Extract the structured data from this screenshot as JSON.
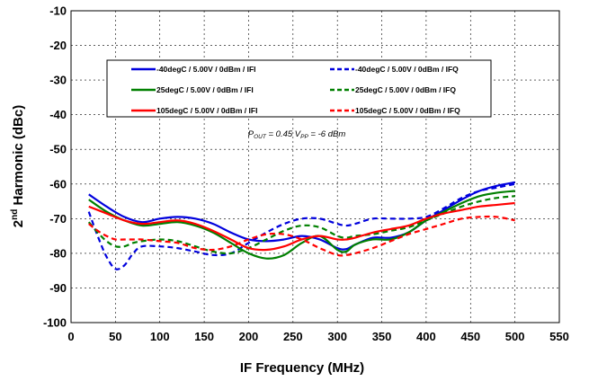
{
  "chart_data": {
    "type": "line",
    "xlabel": "IF Frequency (MHz)",
    "ylabel_main": "2",
    "ylabel_sup": "nd",
    "ylabel_rest": " Harmonic (dBc)",
    "xlim": [
      0,
      550
    ],
    "ylim": [
      -100,
      -10
    ],
    "xticks": [
      0,
      50,
      100,
      150,
      200,
      250,
      300,
      350,
      400,
      450,
      500,
      550
    ],
    "yticks": [
      -10,
      -20,
      -30,
      -40,
      -50,
      -60,
      -70,
      -80,
      -90,
      -100
    ],
    "grid": true,
    "legend_position": "top",
    "annotation": {
      "p": "P",
      "out": "OUT",
      "mid": " = 0.45 V",
      "pp": "PP",
      "end": " = -6 dBm"
    },
    "series": [
      {
        "name": "-40degC /  5.00V /  0dBm /  IFI",
        "color": "#0000dd",
        "dash": false,
        "x": [
          20,
          40,
          60,
          80,
          100,
          120,
          140,
          160,
          180,
          200,
          220,
          240,
          260,
          280,
          300,
          310,
          320,
          340,
          360,
          380,
          400,
          420,
          440,
          460,
          480,
          500
        ],
        "y": [
          -63,
          -66.5,
          -69.5,
          -71,
          -70,
          -69.5,
          -70,
          -71.5,
          -74,
          -76,
          -76.5,
          -76,
          -75,
          -76,
          -78.5,
          -78.8,
          -77.5,
          -75.5,
          -75.5,
          -74,
          -70.5,
          -67.5,
          -64.5,
          -62,
          -60.5,
          -59.5
        ]
      },
      {
        "name": "-40degC /  5.00V /  0dBm /  IFQ",
        "color": "#0000dd",
        "dash": true,
        "x": [
          20,
          30,
          40,
          50,
          60,
          70,
          80,
          100,
          120,
          140,
          160,
          180,
          200,
          220,
          240,
          260,
          280,
          300,
          310,
          320,
          340,
          360,
          380,
          400,
          420,
          440,
          460,
          480,
          500
        ],
        "y": [
          -68,
          -75,
          -81,
          -84.5,
          -83.5,
          -80,
          -78,
          -78,
          -78.5,
          -79.5,
          -80.5,
          -80,
          -77,
          -74,
          -71.5,
          -70,
          -70,
          -71.5,
          -72,
          -71.5,
          -70,
          -70,
          -70,
          -69.5,
          -67,
          -64,
          -62,
          -61,
          -60
        ]
      },
      {
        "name": "25degC /  5.00V /  0dBm /  IFI",
        "color": "#008000",
        "dash": false,
        "x": [
          20,
          40,
          60,
          80,
          100,
          120,
          140,
          160,
          180,
          200,
          220,
          240,
          260,
          280,
          300,
          310,
          320,
          340,
          360,
          380,
          400,
          420,
          440,
          460,
          480,
          500
        ],
        "y": [
          -64.5,
          -68,
          -70.5,
          -72,
          -71.5,
          -71,
          -72,
          -74,
          -77,
          -80,
          -81.5,
          -80.5,
          -77,
          -75,
          -79,
          -79.5,
          -77.5,
          -76,
          -76,
          -74,
          -70.5,
          -68,
          -65.5,
          -63.5,
          -62.5,
          -62
        ]
      },
      {
        "name": "25degC /  5.00V /  0dBm /  IFQ",
        "color": "#008000",
        "dash": true,
        "x": [
          20,
          30,
          40,
          50,
          60,
          70,
          80,
          100,
          120,
          140,
          160,
          180,
          200,
          220,
          240,
          260,
          280,
          300,
          310,
          320,
          340,
          360,
          380,
          400,
          420,
          440,
          460,
          480,
          500
        ],
        "y": [
          -71,
          -74,
          -76.5,
          -78,
          -78,
          -77,
          -76.5,
          -76,
          -76.5,
          -78,
          -79.5,
          -80,
          -78.5,
          -76,
          -73.5,
          -72,
          -72.5,
          -75,
          -75.5,
          -75,
          -74.5,
          -73.5,
          -72.5,
          -70.5,
          -68.5,
          -66.5,
          -65,
          -64,
          -63.5
        ]
      },
      {
        "name": "105degC /  5.00V /  0dBm /  IFI",
        "color": "#ff0000",
        "dash": false,
        "x": [
          20,
          40,
          60,
          80,
          100,
          120,
          140,
          160,
          180,
          200,
          220,
          240,
          260,
          280,
          300,
          310,
          320,
          340,
          360,
          380,
          400,
          420,
          440,
          460,
          480,
          500
        ],
        "y": [
          -66.5,
          -68.5,
          -70.5,
          -71.5,
          -71,
          -70.5,
          -71.5,
          -73.5,
          -76,
          -78.5,
          -79,
          -78,
          -76,
          -75,
          -76,
          -76,
          -75.5,
          -74,
          -73,
          -72,
          -70,
          -68.5,
          -67.5,
          -66.5,
          -66,
          -65.5
        ]
      },
      {
        "name": "105degC /  5.00V /  0dBm /  IFQ",
        "color": "#ff0000",
        "dash": true,
        "x": [
          20,
          30,
          40,
          50,
          60,
          70,
          80,
          100,
          120,
          140,
          160,
          180,
          200,
          220,
          240,
          260,
          280,
          300,
          310,
          320,
          340,
          360,
          380,
          400,
          420,
          440,
          460,
          480,
          500
        ],
        "y": [
          -71.5,
          -73.5,
          -75,
          -76,
          -76,
          -76,
          -76,
          -76.5,
          -77,
          -78.5,
          -79,
          -78,
          -76,
          -74.5,
          -74.5,
          -76,
          -78.5,
          -80.5,
          -80.5,
          -80,
          -78.5,
          -76.5,
          -74.5,
          -73,
          -71.5,
          -70,
          -69.5,
          -69.5,
          -70.5
        ]
      }
    ]
  }
}
